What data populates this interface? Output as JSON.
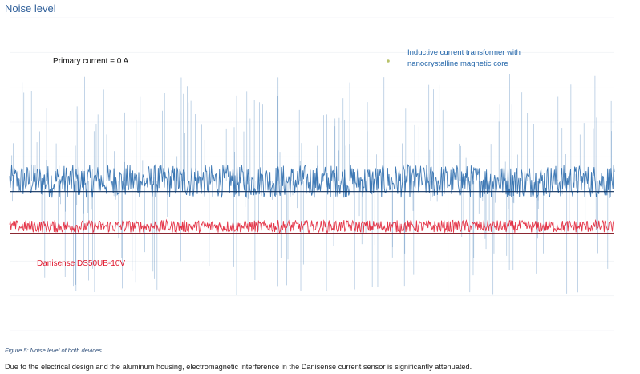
{
  "page": {
    "title": "Noise level",
    "caption": "Figure 5: Noise level of both devices",
    "body_text": "Due to the electrical design and the aluminum housing, electromagnetic interference in the Danisense current sensor is significantly attenuated."
  },
  "colors": {
    "inductive": "#1f63a8",
    "danisense": "#e0142a",
    "title": "#2f5f9a",
    "grid": "#f1f3f6"
  },
  "chart_data": {
    "type": "line",
    "title": "",
    "xlabel": "",
    "ylabel": "",
    "ylim": [
      -3,
      6
    ],
    "grid": true,
    "legend": "none",
    "annotations": {
      "primary_current": "Primary current = 0 A",
      "inductive_line1": "Inductive current transformer with",
      "inductive_line2": "nanocrystalline magnetic core",
      "danisense": "Danisense DS50UB-10V"
    },
    "series": [
      {
        "name": "Inductive current transformer with nanocrystalline magnetic core",
        "color": "#1f63a8",
        "baseline": 1.0,
        "noise_center": 1.3,
        "noise_band": [
          0.9,
          1.7
        ],
        "spike_range": [
          -2.0,
          4.4
        ]
      },
      {
        "name": "Danisense DS50UB-10V",
        "color": "#e0142a",
        "baseline": -0.2,
        "noise_center": 0.0,
        "noise_band": [
          -0.15,
          0.15
        ]
      }
    ]
  }
}
